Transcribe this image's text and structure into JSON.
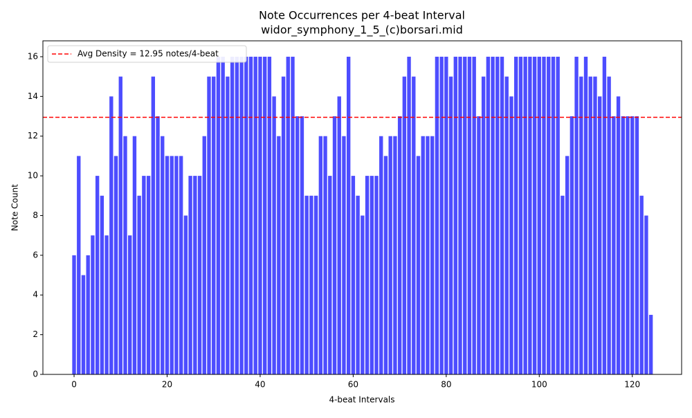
{
  "chart_data": {
    "type": "bar",
    "title": "Note Occurrences per 4-beat Interval",
    "subtitle": "widor_symphony_1_5_(c)borsari.mid",
    "x_label": "4-beat Intervals",
    "y_label": "Note Count",
    "color": "#4d4dff",
    "x": [
      0,
      1,
      2,
      3,
      4,
      5,
      6,
      7,
      8,
      9,
      10,
      11,
      12,
      13,
      14,
      15,
      16,
      17,
      18,
      19,
      20,
      21,
      22,
      23,
      24,
      25,
      26,
      27,
      28,
      29,
      30,
      31,
      32,
      33,
      34,
      35,
      36,
      37,
      38,
      39,
      40,
      41,
      42,
      43,
      44,
      45,
      46,
      47,
      48,
      49,
      50,
      51,
      52,
      53,
      54,
      55,
      56,
      57,
      58,
      59,
      60,
      61,
      62,
      63,
      64,
      65,
      66,
      67,
      68,
      69,
      70,
      71,
      72,
      73,
      74,
      75,
      76,
      77,
      78,
      79,
      80,
      81,
      82,
      83,
      84,
      85,
      86,
      87,
      88,
      89,
      90,
      91,
      92,
      93,
      94,
      95,
      96,
      97,
      98,
      99,
      100,
      101,
      102,
      103,
      104,
      105,
      106,
      107,
      108,
      109,
      110,
      111,
      112,
      113,
      114,
      115,
      116,
      117,
      118,
      119,
      120,
      121,
      122,
      123,
      124
    ],
    "values": [
      6,
      11,
      5,
      6,
      7,
      10,
      9,
      7,
      14,
      11,
      15,
      12,
      7,
      12,
      9,
      10,
      10,
      15,
      13,
      12,
      11,
      11,
      11,
      11,
      8,
      10,
      10,
      10,
      12,
      15,
      15,
      16,
      16,
      15,
      16,
      16,
      16,
      16,
      16,
      16,
      16,
      16,
      16,
      14,
      12,
      15,
      16,
      16,
      13,
      13,
      9,
      9,
      9,
      12,
      12,
      10,
      13,
      14,
      12,
      16,
      10,
      9,
      8,
      10,
      10,
      10,
      12,
      11,
      12,
      12,
      13,
      15,
      16,
      15,
      11,
      12,
      12,
      12,
      16,
      16,
      16,
      15,
      16,
      16,
      16,
      16,
      16,
      13,
      15,
      16,
      16,
      16,
      16,
      15,
      14,
      16,
      16,
      16,
      16,
      16,
      16,
      16,
      16,
      16,
      16,
      9,
      11,
      13,
      16,
      15,
      16,
      15,
      15,
      14,
      16,
      15,
      13,
      14,
      13,
      13,
      13,
      13,
      9,
      8,
      3
    ],
    "xlim": [
      -6.7,
      130.6
    ],
    "ylim": [
      0,
      16.8
    ],
    "xticks": [
      0,
      20,
      40,
      60,
      80,
      100,
      120
    ],
    "yticks": [
      0,
      2,
      4,
      6,
      8,
      10,
      12,
      14,
      16
    ],
    "avg_line": {
      "value": 12.95,
      "label": "Avg Density = 12.95 notes/4-beat",
      "color": "#ff0000"
    },
    "legend": "upper left"
  }
}
